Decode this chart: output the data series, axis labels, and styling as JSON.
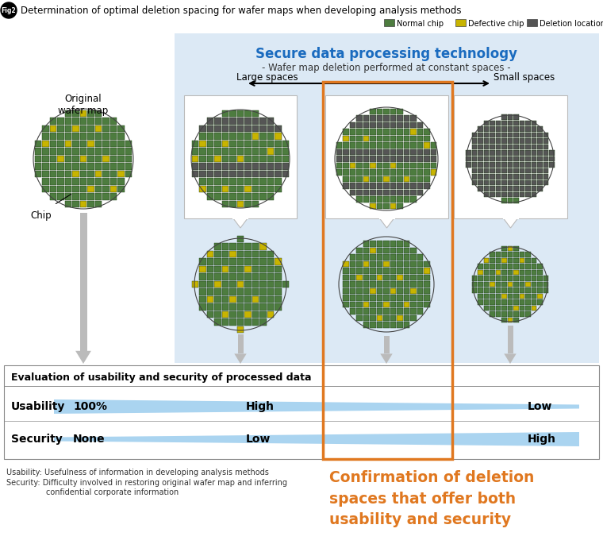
{
  "title": "Determination of optimal deletion spacing for wafer maps when developing analysis methods",
  "fig_label": "Fig2",
  "legend_items": [
    {
      "label": "Normal chip",
      "color": "#4d7c3f"
    },
    {
      "label": "Defective chip",
      "color": "#c8b400"
    },
    {
      "label": "Deletion location",
      "color": "#555555"
    }
  ],
  "blue_box_title": "Secure data processing technology",
  "blue_box_subtitle": "- Wafer map deletion performed at constant spaces -",
  "large_spaces_label": "Large spaces",
  "small_spaces_label": "Small spaces",
  "original_label": "Original\nwafer map",
  "chip_label": "Chip",
  "eval_title": "Evaluation of usability and security of processed data",
  "usability_label": "Usability",
  "security_label": "Security",
  "usability_values": [
    "100%",
    "High",
    "Low"
  ],
  "security_values": [
    "None",
    "Low",
    "High"
  ],
  "bottom_note1": "Usability: Usefulness of information in developing analysis methods",
  "bottom_note2": "Security: Difficulty involved in restoring original wafer map and inferring",
  "bottom_note3": "                confidential corporate information",
  "confirm_text": "Confirmation of deletion\nspaces that offer both\nusability and security",
  "bg_color": "#dce9f5",
  "normal_chip_color": "#4d7c3f",
  "defective_chip_color": "#c8b400",
  "deletion_color": "#555555",
  "orange_box_color": "#e07820",
  "bar_color": "#aad4f0",
  "arrow_color": "#aaaaaa",
  "table_border_color": "#888888"
}
